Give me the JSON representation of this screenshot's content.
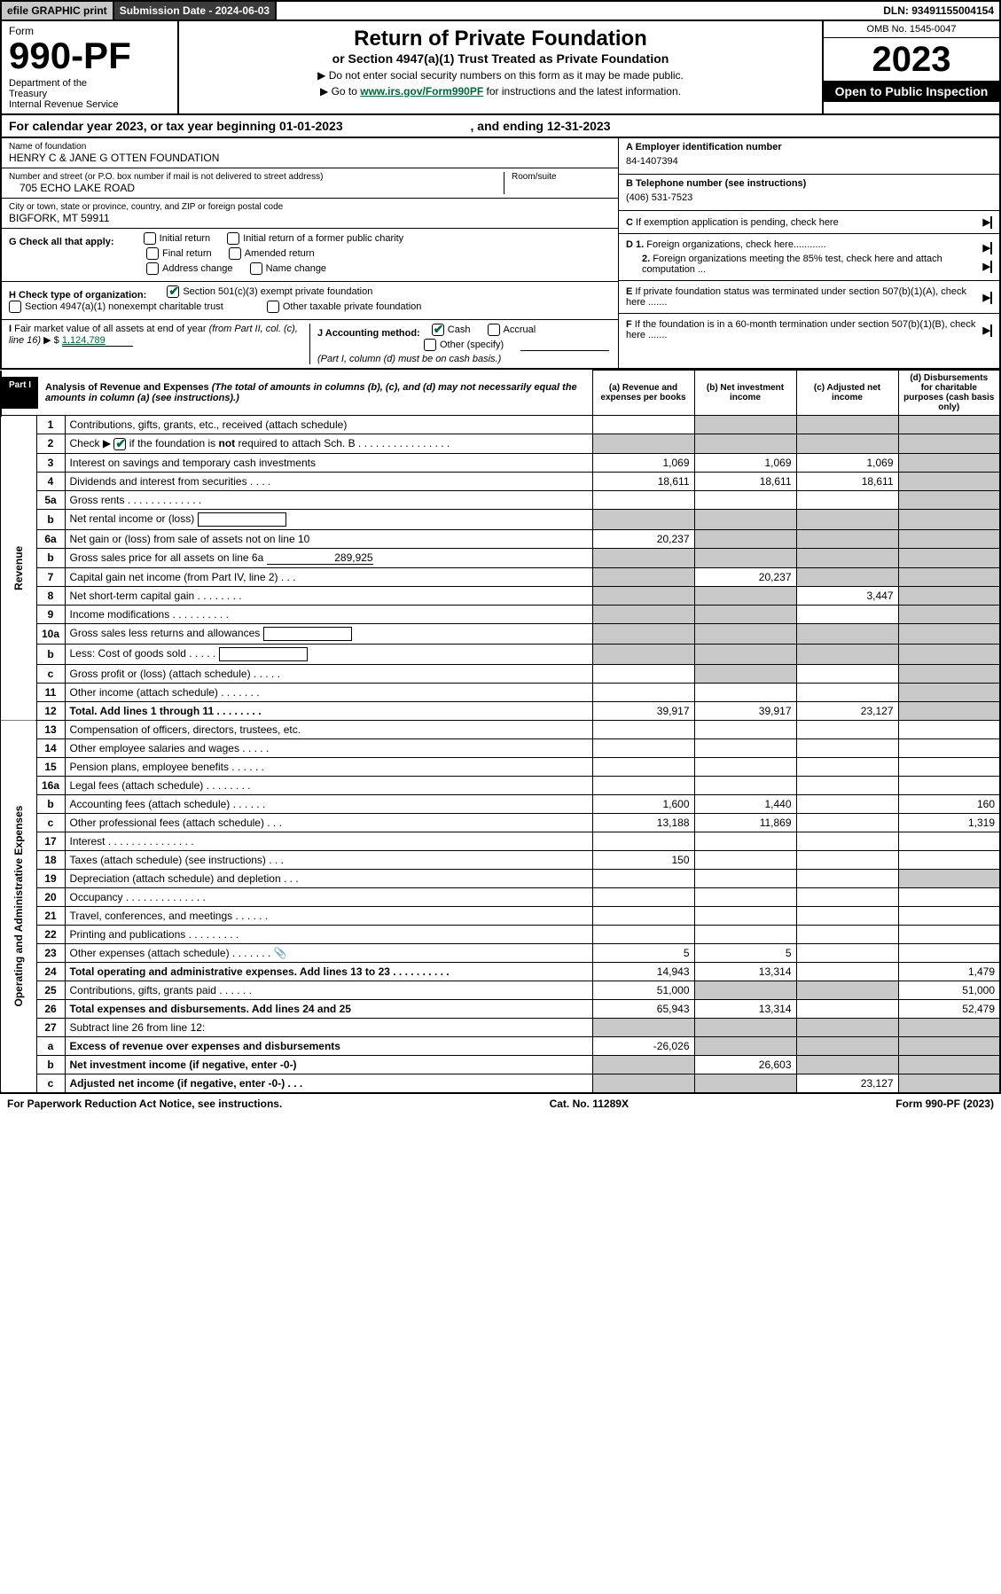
{
  "top_bar": {
    "efile": "efile GRAPHIC print",
    "submission_label": "Submission Date - 2024-06-03",
    "dln": "DLN: 93491155004154"
  },
  "header": {
    "form_word": "Form",
    "form_number": "990-PF",
    "dept": "Department of the Treasury\nInternal Revenue Service",
    "title": "Return of Private Foundation",
    "subtitle": "or Section 4947(a)(1) Trust Treated as Private Foundation",
    "instr1": "▶ Do not enter social security numbers on this form as it may be made public.",
    "instr2_prefix": "▶ Go to ",
    "instr2_link": "www.irs.gov/Form990PF",
    "instr2_suffix": " for instructions and the latest information.",
    "omb": "OMB No. 1545-0047",
    "year": "2023",
    "open_public": "Open to Public Inspection"
  },
  "cal_year": {
    "prefix": "For calendar year 2023, or tax year beginning ",
    "begin": "01-01-2023",
    "mid": " , and ending ",
    "end": "12-31-2023"
  },
  "info": {
    "name_label": "Name of foundation",
    "name_value": "HENRY C & JANE G OTTEN FOUNDATION",
    "addr_label": "Number and street (or P.O. box number if mail is not delivered to street address)",
    "addr_value": "705 ECHO LAKE ROAD",
    "room_label": "Room/suite",
    "city_label": "City or town, state or province, country, and ZIP or foreign postal code",
    "city_value": "BIGFORK, MT  59911",
    "ein_label": "A Employer identification number",
    "ein_value": "84-1407394",
    "phone_label": "B Telephone number (see instructions)",
    "phone_value": "(406) 531-7523",
    "c_label": "C If exemption application is pending, check here",
    "d1_label": "D 1. Foreign organizations, check here............",
    "d2_label": "2. Foreign organizations meeting the 85% test, check here and attach computation ...",
    "e_label": "E  If private foundation status was terminated under section 507(b)(1)(A), check here .......",
    "f_label": "F  If the foundation is in a 60-month termination under section 507(b)(1)(B), check here .......",
    "g_label": "G Check all that apply:",
    "g_opts": [
      "Initial return",
      "Initial return of a former public charity",
      "Final return",
      "Amended return",
      "Address change",
      "Name change"
    ],
    "h_label": "H Check type of organization:",
    "h_opt1": "Section 501(c)(3) exempt private foundation",
    "h_opt2": "Section 4947(a)(1) nonexempt charitable trust",
    "h_opt3": "Other taxable private foundation",
    "i_label": "I Fair market value of all assets at end of year (from Part II, col. (c), line 16) ▶ $",
    "i_value": "1,124,789",
    "j_label": "J Accounting method:",
    "j_cash": "Cash",
    "j_accrual": "Accrual",
    "j_other": "Other (specify)",
    "j_note": "(Part I, column (d) must be on cash basis.)"
  },
  "part1": {
    "tag": "Part I",
    "title": "Analysis of Revenue and Expenses",
    "note": "(The total of amounts in columns (b), (c), and (d) may not necessarily equal the amounts in column (a) (see instructions).)",
    "col_a": "(a) Revenue and expenses per books",
    "col_b": "(b) Net investment income",
    "col_c": "(c) Adjusted net income",
    "col_d": "(d) Disbursements for charitable purposes (cash basis only)",
    "side_revenue": "Revenue",
    "side_expenses": "Operating and Administrative Expenses"
  },
  "rows": [
    {
      "n": "1",
      "label": "Contributions, gifts, grants, etc., received (attach schedule)",
      "a": "",
      "b": "_s",
      "c": "_s",
      "d": "_s"
    },
    {
      "n": "2",
      "label": "Check ▶ ☑ if the foundation is not required to attach Sch. B   .   .   .   .   .   .   .   .   .   .   .   .   .   .   .   .",
      "checked": true,
      "a": "_s",
      "b": "_s",
      "c": "_s",
      "d": "_s"
    },
    {
      "n": "3",
      "label": "Interest on savings and temporary cash investments",
      "a": "1,069",
      "b": "1,069",
      "c": "1,069",
      "d": "_s"
    },
    {
      "n": "4",
      "label": "Dividends and interest from securities   .   .   .   .",
      "a": "18,611",
      "b": "18,611",
      "c": "18,611",
      "d": "_s"
    },
    {
      "n": "5a",
      "label": "Gross rents   .   .   .   .   .   .   .   .   .   .   .   .   .",
      "a": "",
      "b": "",
      "c": "",
      "d": "_s"
    },
    {
      "n": "b",
      "label": "Net rental income or (loss)  ",
      "box": true,
      "a": "_s",
      "b": "_s",
      "c": "_s",
      "d": "_s"
    },
    {
      "n": "6a",
      "label": "Net gain or (loss) from sale of assets not on line 10",
      "a": "20,237",
      "b": "_s",
      "c": "_s",
      "d": "_s"
    },
    {
      "n": "b",
      "label": "Gross sales price for all assets on line 6a",
      "inline_val": "289,925",
      "a": "_s",
      "b": "_s",
      "c": "_s",
      "d": "_s"
    },
    {
      "n": "7",
      "label": "Capital gain net income (from Part IV, line 2)   .   .   .",
      "a": "_s",
      "b": "20,237",
      "c": "_s",
      "d": "_s"
    },
    {
      "n": "8",
      "label": "Net short-term capital gain   .   .   .   .   .   .   .   .",
      "a": "_s",
      "b": "_s",
      "c": "3,447",
      "d": "_s"
    },
    {
      "n": "9",
      "label": "Income modifications   .   .   .   .   .   .   .   .   .   .",
      "a": "_s",
      "b": "_s",
      "c": "",
      "d": "_s"
    },
    {
      "n": "10a",
      "label": "Gross sales less returns and allowances",
      "box": true,
      "a": "_s",
      "b": "_s",
      "c": "_s",
      "d": "_s"
    },
    {
      "n": "b",
      "label": "Less: Cost of goods sold   .   .   .   .   .",
      "box": true,
      "a": "_s",
      "b": "_s",
      "c": "_s",
      "d": "_s"
    },
    {
      "n": "c",
      "label": "Gross profit or (loss) (attach schedule)   .   .   .   .   .",
      "a": "",
      "b": "_s",
      "c": "",
      "d": "_s"
    },
    {
      "n": "11",
      "label": "Other income (attach schedule)   .   .   .   .   .   .   .",
      "a": "",
      "b": "",
      "c": "",
      "d": "_s"
    },
    {
      "n": "12",
      "label": "Total. Add lines 1 through 11   .   .   .   .   .   .   .   .",
      "bold": true,
      "a": "39,917",
      "b": "39,917",
      "c": "23,127",
      "d": "_s"
    },
    {
      "n": "13",
      "label": "Compensation of officers, directors, trustees, etc.",
      "a": "",
      "b": "",
      "c": "",
      "d": ""
    },
    {
      "n": "14",
      "label": "Other employee salaries and wages   .   .   .   .   .",
      "a": "",
      "b": "",
      "c": "",
      "d": ""
    },
    {
      "n": "15",
      "label": "Pension plans, employee benefits   .   .   .   .   .   .",
      "a": "",
      "b": "",
      "c": "",
      "d": ""
    },
    {
      "n": "16a",
      "label": "Legal fees (attach schedule)   .   .   .   .   .   .   .   .",
      "a": "",
      "b": "",
      "c": "",
      "d": ""
    },
    {
      "n": "b",
      "label": "Accounting fees (attach schedule)   .   .   .   .   .   .",
      "a": "1,600",
      "b": "1,440",
      "c": "",
      "d": "160"
    },
    {
      "n": "c",
      "label": "Other professional fees (attach schedule)   .   .   .",
      "a": "13,188",
      "b": "11,869",
      "c": "",
      "d": "1,319"
    },
    {
      "n": "17",
      "label": "Interest   .   .   .   .   .   .   .   .   .   .   .   .   .   .   .",
      "a": "",
      "b": "",
      "c": "",
      "d": ""
    },
    {
      "n": "18",
      "label": "Taxes (attach schedule) (see instructions)   .   .   .",
      "a": "150",
      "b": "",
      "c": "",
      "d": ""
    },
    {
      "n": "19",
      "label": "Depreciation (attach schedule) and depletion   .   .   .",
      "a": "",
      "b": "",
      "c": "",
      "d": "_s"
    },
    {
      "n": "20",
      "label": "Occupancy   .   .   .   .   .   .   .   .   .   .   .   .   .   .",
      "a": "",
      "b": "",
      "c": "",
      "d": ""
    },
    {
      "n": "21",
      "label": "Travel, conferences, and meetings   .   .   .   .   .   .",
      "a": "",
      "b": "",
      "c": "",
      "d": ""
    },
    {
      "n": "22",
      "label": "Printing and publications   .   .   .   .   .   .   .   .   .",
      "a": "",
      "b": "",
      "c": "",
      "d": ""
    },
    {
      "n": "23",
      "label": "Other expenses (attach schedule)   .   .   .   .   .   .   .",
      "icon": true,
      "a": "5",
      "b": "5",
      "c": "",
      "d": ""
    },
    {
      "n": "24",
      "label": "Total operating and administrative expenses. Add lines 13 to 23   .   .   .   .   .   .   .   .   .   .",
      "bold": true,
      "a": "14,943",
      "b": "13,314",
      "c": "",
      "d": "1,479"
    },
    {
      "n": "25",
      "label": "Contributions, gifts, grants paid   .   .   .   .   .   .",
      "a": "51,000",
      "b": "_s",
      "c": "_s",
      "d": "51,000"
    },
    {
      "n": "26",
      "label": "Total expenses and disbursements. Add lines 24 and 25",
      "bold": true,
      "a": "65,943",
      "b": "13,314",
      "c": "",
      "d": "52,479"
    },
    {
      "n": "27",
      "label": "Subtract line 26 from line 12:",
      "a": "_s",
      "b": "_s",
      "c": "_s",
      "d": "_s"
    },
    {
      "n": "a",
      "label": "Excess of revenue over expenses and disbursements",
      "bold": true,
      "a": "-26,026",
      "b": "_s",
      "c": "_s",
      "d": "_s"
    },
    {
      "n": "b",
      "label": "Net investment income (if negative, enter -0-)",
      "bold": true,
      "a": "_s",
      "b": "26,603",
      "c": "_s",
      "d": "_s"
    },
    {
      "n": "c",
      "label": "Adjusted net income (if negative, enter -0-)   .   .   .",
      "bold": true,
      "a": "_s",
      "b": "_s",
      "c": "23,127",
      "d": "_s"
    }
  ],
  "footer": {
    "left": "For Paperwork Reduction Act Notice, see instructions.",
    "mid": "Cat. No. 11289X",
    "right": "Form 990-PF (2023)"
  }
}
